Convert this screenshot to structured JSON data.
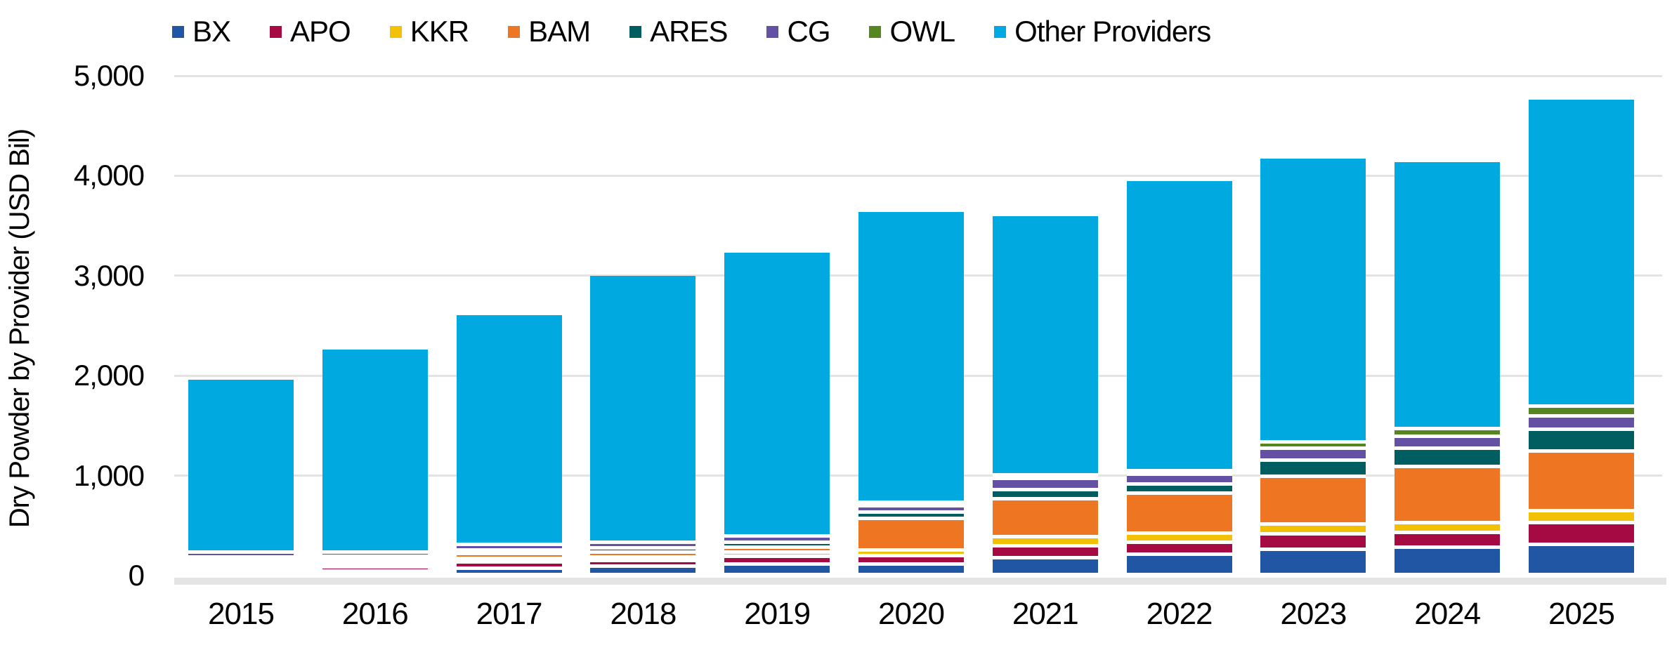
{
  "chart_data": {
    "type": "bar",
    "stacked": true,
    "title": "",
    "xlabel": "",
    "ylabel": "Dry Powder by Provider (USD Bil)",
    "categories": [
      "2015",
      "2016",
      "2017",
      "2018",
      "2019",
      "2020",
      "2021",
      "2022",
      "2023",
      "2024",
      "2025"
    ],
    "series": [
      {
        "name": "BX",
        "color": "#2156A5",
        "values": [
          65,
          65,
          88,
          110,
          135,
          135,
          200,
          230,
          280,
          300,
          330
        ]
      },
      {
        "name": "APO",
        "color": "#A50B42",
        "values": [
          35,
          40,
          68,
          62,
          75,
          85,
          115,
          120,
          155,
          150,
          215
        ]
      },
      {
        "name": "KKR",
        "color": "#F2C005",
        "values": [
          25,
          25,
          32,
          35,
          45,
          55,
          90,
          90,
          100,
          100,
          120
        ]
      },
      {
        "name": "BAM",
        "color": "#EE7623",
        "values": [
          35,
          35,
          45,
          45,
          50,
          315,
          380,
          400,
          480,
          560,
          600
        ]
      },
      {
        "name": "ARES",
        "color": "#005E60",
        "values": [
          25,
          25,
          35,
          42,
          45,
          60,
          95,
          95,
          160,
          180,
          215
        ]
      },
      {
        "name": "CG",
        "color": "#6451A3",
        "values": [
          45,
          45,
          60,
          60,
          65,
          70,
          110,
          100,
          120,
          120,
          135
        ]
      },
      {
        "name": "OWL",
        "color": "#55861F",
        "values": [
          0,
          0,
          0,
          0,
          0,
          5,
          10,
          25,
          60,
          80,
          100
        ]
      },
      {
        "name": "Other Providers",
        "color": "#00A9E0",
        "values": [
          1710,
          2005,
          2272,
          2646,
          2815,
          2885,
          2570,
          2880,
          2815,
          2650,
          3045
        ]
      }
    ],
    "totals": [
      1940,
      2240,
      2600,
      3000,
      3230,
      3610,
      3570,
      3940,
      4170,
      4140,
      4760
    ],
    "y_axis": {
      "min": 0,
      "max": 5000,
      "tick_step": 1000,
      "tick_labels": [
        "0",
        "1,000",
        "2,000",
        "3,000",
        "4,000",
        "5,000"
      ]
    },
    "grid": true,
    "legend_position": "top"
  }
}
